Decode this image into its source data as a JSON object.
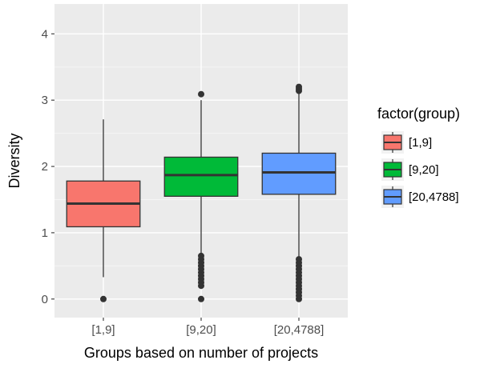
{
  "chart_data": {
    "type": "boxplot",
    "xlabel": "Groups based on number of projects",
    "ylabel": "Diversity",
    "ylim": [
      -0.28,
      4.45
    ],
    "yticks": [
      0,
      1,
      2,
      3,
      4
    ],
    "grid": true,
    "legend": {
      "title": "factor(group)",
      "placement": "right",
      "entries": [
        "[1,9]",
        "[9,20]",
        "[20,4788]"
      ]
    },
    "categories": [
      "[1,9]",
      "[9,20]",
      "[20,4788]"
    ],
    "series": [
      {
        "name": "[1,9]",
        "color": "#F8766D",
        "q1": 1.09,
        "median": 1.44,
        "q3": 1.78,
        "whisker_low": 0.33,
        "whisker_high": 2.71,
        "outliers": [
          0.0
        ]
      },
      {
        "name": "[9,20]",
        "color": "#00BA38",
        "q1": 1.55,
        "median": 1.87,
        "q3": 2.14,
        "whisker_low": 0.68,
        "whisker_high": 3.0,
        "outliers": [
          0.0,
          0.2,
          0.25,
          0.3,
          0.35,
          0.4,
          0.45,
          0.5,
          0.55,
          0.6,
          0.65,
          3.09
        ]
      },
      {
        "name": "[20,4788]",
        "color": "#619CFF",
        "q1": 1.58,
        "median": 1.91,
        "q3": 2.2,
        "whisker_low": 0.64,
        "whisker_high": 3.1,
        "outliers": [
          0.0,
          0.05,
          0.1,
          0.15,
          0.2,
          0.25,
          0.3,
          0.35,
          0.4,
          0.45,
          0.5,
          0.55,
          0.6,
          3.14,
          3.17,
          3.2
        ]
      }
    ]
  }
}
